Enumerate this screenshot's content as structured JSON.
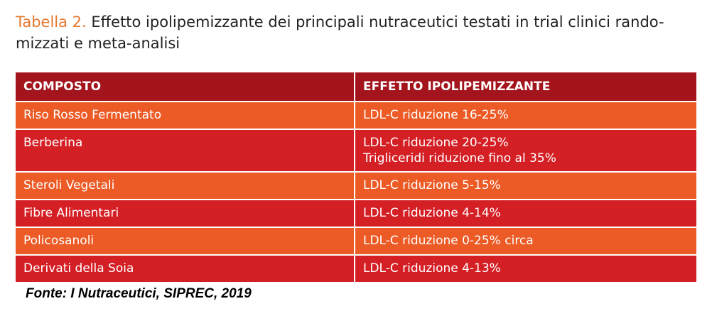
{
  "caption": {
    "label": "Tabella 2.",
    "text_line1": " Effetto ipolipemizzante dei principali nutraceutici testati in trial clinici rando-",
    "text_line2": "mizzati e meta-analisi"
  },
  "table": {
    "headers": [
      "COMPOSTO",
      "EFFETTO IPOLIPEMIZZANTE"
    ],
    "rows": [
      {
        "compound": "Riso Rosso Fermentato",
        "effect": [
          "LDL-C riduzione 16-25%"
        ]
      },
      {
        "compound": "Berberina",
        "effect": [
          "LDL-C riduzione 20-25%",
          "Trigliceridi riduzione fino al 35%"
        ]
      },
      {
        "compound": "Steroli Vegetali",
        "effect": [
          "LDL-C riduzione 5-15%"
        ]
      },
      {
        "compound": "Fibre Alimentari",
        "effect": [
          "LDL-C riduzione 4-14%"
        ]
      },
      {
        "compound": "Policosanoli",
        "effect": [
          "LDL-C riduzione 0-25% circa"
        ]
      },
      {
        "compound": "Derivati della Soia",
        "effect": [
          "LDL-C riduzione 4-13%"
        ]
      }
    ]
  },
  "source": "Fonte: I Nutraceutici, SIPREC, 2019",
  "colors": {
    "header": "#a3141c",
    "orange_row": "#ec5a25",
    "red_row": "#d41f25",
    "caption_label": "#e6772e"
  }
}
